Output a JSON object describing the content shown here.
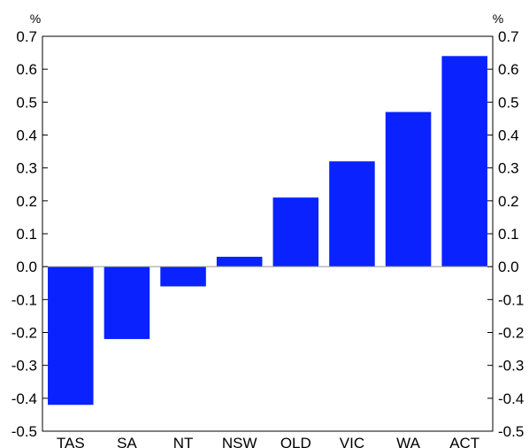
{
  "chart_data": {
    "type": "bar",
    "categories": [
      "TAS",
      "SA",
      "NT",
      "NSW",
      "QLD",
      "VIC",
      "WA",
      "ACT"
    ],
    "values": [
      -0.42,
      -0.22,
      -0.06,
      0.03,
      0.21,
      0.32,
      0.47,
      0.64
    ],
    "ylim": [
      -0.5,
      0.7
    ],
    "yticks": [
      "0.7",
      "0.6",
      "0.5",
      "0.4",
      "0.3",
      "0.2",
      "0.1",
      "0.0",
      "-0.1",
      "-0.2",
      "-0.3",
      "-0.4",
      "-0.5"
    ],
    "y_unit_left": "%",
    "y_unit_right": "%",
    "bar_color": "#0a22fd",
    "grid": false,
    "legend": "none"
  }
}
